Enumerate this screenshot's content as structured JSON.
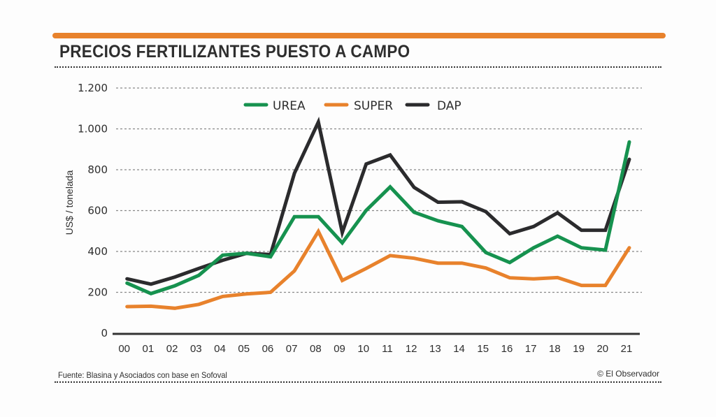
{
  "header": {
    "title": "PRECIOS FERTILIZANTES PUESTO A CAMPO"
  },
  "footer": {
    "source": "Fuente: Blasina y Asociados con base en Sofoval",
    "credit": "© El Observador"
  },
  "colors": {
    "accent_bar": "#e8822c",
    "UREA": "#16924f",
    "SUPER": "#e8822c",
    "DAP": "#2b2b2d",
    "grid": "#888888",
    "text": "#2e2e2e"
  },
  "chart_data": {
    "type": "line",
    "title": "PRECIOS FERTILIZANTES PUESTO A CAMPO",
    "xlabel": "",
    "ylabel": "US$ / tonelada",
    "ylim": [
      0,
      1200
    ],
    "yticks": [
      0,
      200,
      400,
      600,
      800,
      1000,
      1200
    ],
    "ytick_labels": [
      "0",
      "200",
      "400",
      "600",
      "800",
      "1.000",
      "1.200"
    ],
    "grid": true,
    "legend_position": "top-center",
    "categories": [
      "00",
      "01",
      "02",
      "03",
      "04",
      "05",
      "06",
      "07",
      "08",
      "09",
      "10",
      "11",
      "12",
      "13",
      "14",
      "15",
      "16",
      "17",
      "18",
      "19",
      "20",
      "21"
    ],
    "series": [
      {
        "name": "UREA",
        "values": [
          245,
          194,
          232,
          283,
          382,
          391,
          374,
          570,
          570,
          442,
          601,
          716,
          592,
          550,
          522,
          395,
          346,
          418,
          475,
          418,
          407,
          936
        ]
      },
      {
        "name": "SUPER",
        "values": [
          130,
          132,
          122,
          141,
          180,
          192,
          200,
          305,
          498,
          258,
          317,
          380,
          367,
          343,
          343,
          319,
          271,
          266,
          272,
          234,
          234,
          418
        ]
      },
      {
        "name": "DAP",
        "values": [
          266,
          240,
          275,
          317,
          357,
          391,
          385,
          783,
          1033,
          493,
          828,
          872,
          714,
          641,
          643,
          595,
          487,
          522,
          589,
          504,
          504,
          851
        ]
      }
    ]
  }
}
